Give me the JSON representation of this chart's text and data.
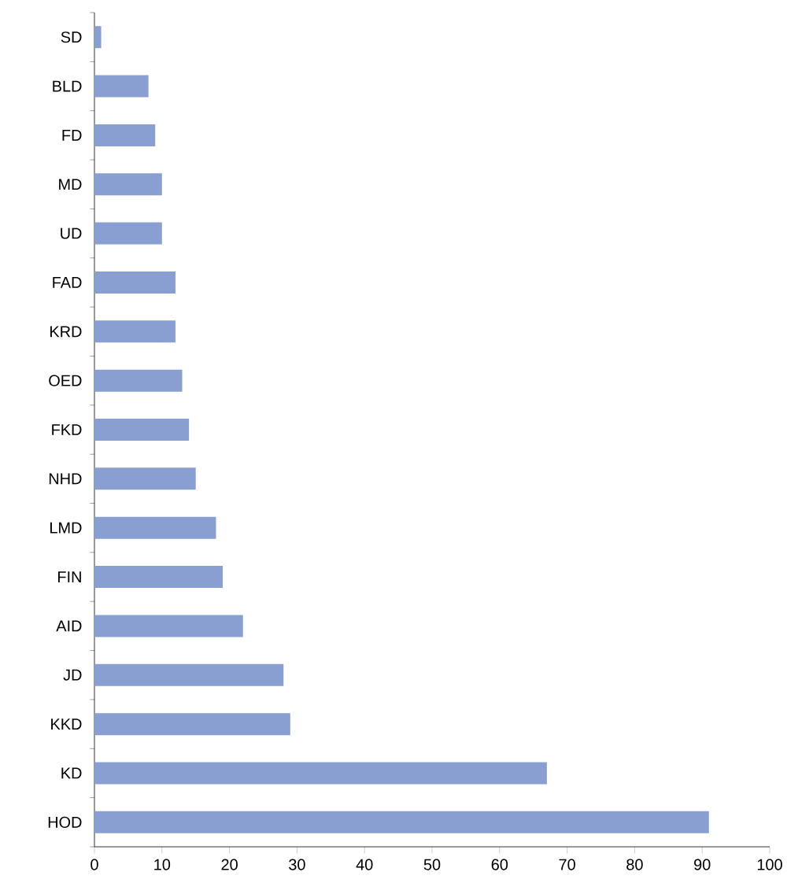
{
  "chart_data": {
    "type": "bar",
    "orientation": "horizontal",
    "categories": [
      "SD",
      "BLD",
      "FD",
      "MD",
      "UD",
      "FAD",
      "KRD",
      "OED",
      "FKD",
      "NHD",
      "LMD",
      "FIN",
      "AID",
      "JD",
      "KKD",
      "KD",
      "HOD"
    ],
    "values": [
      1,
      8,
      9,
      10,
      10,
      12,
      12,
      13,
      14,
      15,
      18,
      19,
      22,
      28,
      29,
      67,
      91
    ],
    "color": "#8a9fd1",
    "xlim": [
      0,
      100
    ],
    "xticks": [
      0,
      10,
      20,
      30,
      40,
      50,
      60,
      70,
      80,
      90,
      100
    ],
    "grid": false
  }
}
